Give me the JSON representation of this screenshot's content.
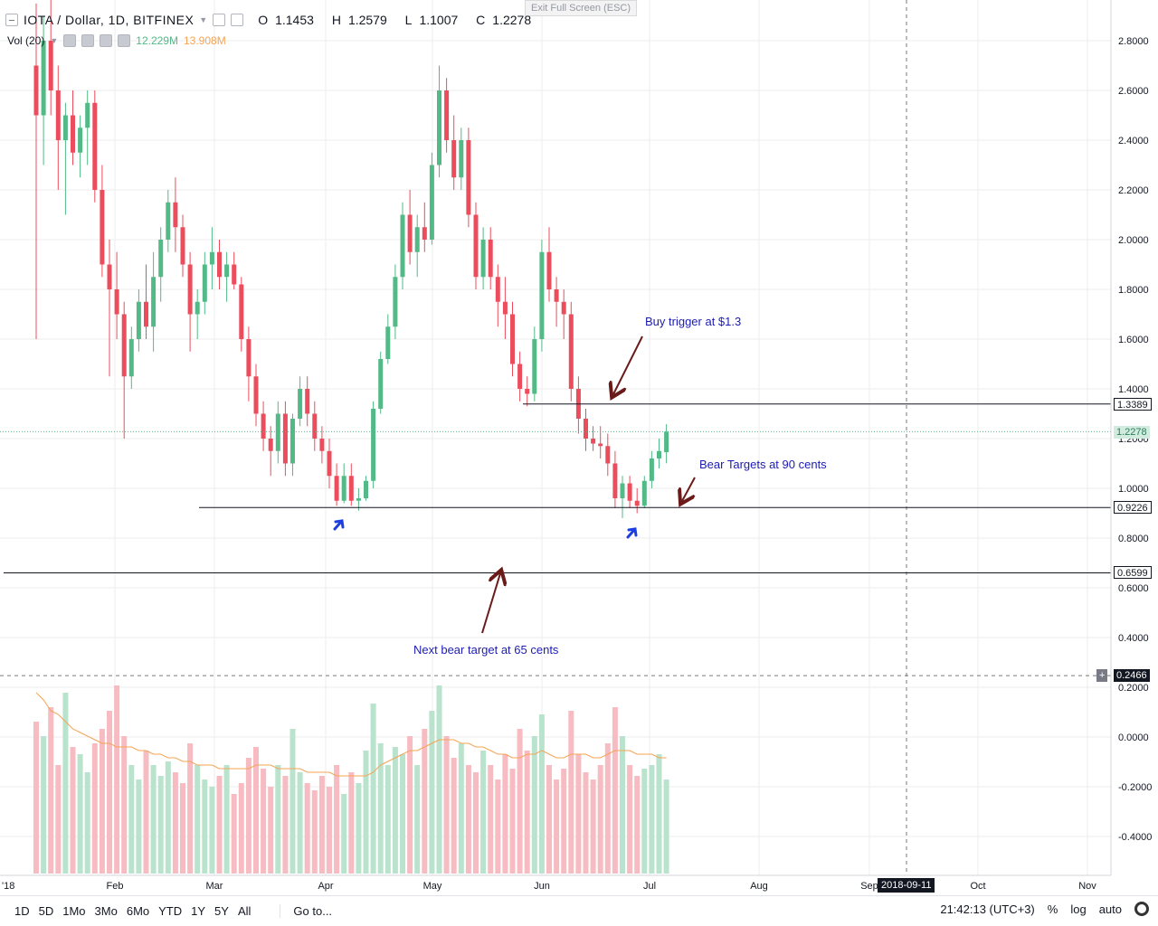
{
  "header": {
    "symbol": "IOTA / Dollar, 1D, BITFINEX",
    "open_label": "O",
    "open": "1.1453",
    "high_label": "H",
    "high": "1.2579",
    "low_label": "L",
    "low": "1.1007",
    "close_label": "C",
    "close": "1.2278",
    "vol_label": "Vol (20)",
    "vol_value": "12.229M",
    "vol_ma_value": "13.908M",
    "exit_fullscreen": "Exit Full Screen (ESC)"
  },
  "colors": {
    "up": "#53b987",
    "down": "#eb4d5c",
    "vol_up": "#b9e3cd",
    "vol_down": "#f7bcc2",
    "vol_ma": "#f5a455",
    "annotation_text": "#1c1cb4",
    "arrow_dark": "#6b1a1a",
    "arrow_blue": "#1d3fe0"
  },
  "annotations": {
    "buy_trigger": "Buy trigger at $1.3",
    "bear_targets": "Bear Targets at 90 cents",
    "next_bear": "Next bear target at 65 cents"
  },
  "price_labels": {
    "line_1339": "1.3389",
    "current": "1.2278",
    "line_0922": "0.9226",
    "line_0659": "0.6599",
    "crosshair": "0.2466"
  },
  "crosshair_date": "2018-09-11",
  "bottom_bar": {
    "timeframes": [
      "1D",
      "5D",
      "1Mo",
      "3Mo",
      "6Mo",
      "YTD",
      "1Y",
      "5Y",
      "All"
    ],
    "goto": "Go to...",
    "clock": "21:42:13 (UTC+3)",
    "percent": "%",
    "log": "log",
    "auto": "auto"
  },
  "chart_data": {
    "type": "candlestick",
    "title": "IOTA / Dollar, 1D, BITFINEX",
    "y_ticks": [
      "2.8000",
      "2.6000",
      "2.4000",
      "2.2000",
      "2.0000",
      "1.8000",
      "1.6000",
      "1.4000",
      "1.2000",
      "1.0000",
      "0.8000",
      "0.6000",
      "0.4000",
      "0.2000",
      "0.0000",
      "-0.2000",
      "-0.4000"
    ],
    "y_tick_values": [
      2.8,
      2.6,
      2.4,
      2.2,
      2.0,
      1.8,
      1.6,
      1.4,
      1.2,
      1.0,
      0.8,
      0.6,
      0.4,
      0.2,
      0.0,
      -0.2,
      -0.4
    ],
    "x_ticks": [
      "Feb",
      "Mar",
      "Apr",
      "May",
      "Jun",
      "Jul",
      "Aug",
      "Sep",
      "Oct",
      "Nov"
    ],
    "x_tick_partial": "'18",
    "horizontal_levels": [
      1.3389,
      0.9226,
      0.6599
    ],
    "last_price": 1.2278,
    "candles": [
      [
        2.7,
        2.95,
        1.6,
        2.5
      ],
      [
        2.5,
        2.9,
        2.3,
        2.8
      ],
      [
        2.8,
        3.0,
        2.5,
        2.6
      ],
      [
        2.6,
        2.7,
        2.2,
        2.4
      ],
      [
        2.4,
        2.55,
        2.1,
        2.5
      ],
      [
        2.5,
        2.6,
        2.3,
        2.35
      ],
      [
        2.35,
        2.5,
        2.25,
        2.45
      ],
      [
        2.45,
        2.6,
        2.3,
        2.55
      ],
      [
        2.55,
        2.6,
        2.15,
        2.2
      ],
      [
        2.2,
        2.3,
        1.85,
        1.9
      ],
      [
        1.9,
        2.0,
        1.45,
        1.8
      ],
      [
        1.8,
        1.95,
        1.6,
        1.7
      ],
      [
        1.7,
        1.75,
        1.2,
        1.45
      ],
      [
        1.45,
        1.65,
        1.4,
        1.6
      ],
      [
        1.6,
        1.8,
        1.55,
        1.75
      ],
      [
        1.75,
        1.9,
        1.6,
        1.65
      ],
      [
        1.65,
        1.95,
        1.55,
        1.85
      ],
      [
        1.85,
        2.05,
        1.75,
        2.0
      ],
      [
        2.0,
        2.2,
        1.95,
        2.15
      ],
      [
        2.15,
        2.25,
        1.95,
        2.05
      ],
      [
        2.05,
        2.1,
        1.85,
        1.9
      ],
      [
        1.9,
        1.95,
        1.55,
        1.7
      ],
      [
        1.7,
        1.8,
        1.6,
        1.75
      ],
      [
        1.75,
        1.95,
        1.7,
        1.9
      ],
      [
        1.9,
        2.05,
        1.8,
        1.95
      ],
      [
        1.95,
        2.0,
        1.8,
        1.85
      ],
      [
        1.85,
        1.95,
        1.75,
        1.9
      ],
      [
        1.9,
        1.95,
        1.8,
        1.82
      ],
      [
        1.82,
        1.85,
        1.55,
        1.6
      ],
      [
        1.6,
        1.65,
        1.35,
        1.45
      ],
      [
        1.45,
        1.5,
        1.25,
        1.3
      ],
      [
        1.3,
        1.35,
        1.15,
        1.2
      ],
      [
        1.2,
        1.25,
        1.05,
        1.15
      ],
      [
        1.15,
        1.35,
        1.1,
        1.3
      ],
      [
        1.3,
        1.35,
        1.05,
        1.1
      ],
      [
        1.1,
        1.3,
        1.05,
        1.28
      ],
      [
        1.28,
        1.45,
        1.25,
        1.4
      ],
      [
        1.4,
        1.45,
        1.25,
        1.3
      ],
      [
        1.3,
        1.35,
        1.15,
        1.2
      ],
      [
        1.2,
        1.25,
        1.1,
        1.15
      ],
      [
        1.15,
        1.2,
        1.0,
        1.05
      ],
      [
        1.05,
        1.1,
        0.93,
        0.95
      ],
      [
        0.95,
        1.1,
        0.94,
        1.05
      ],
      [
        1.05,
        1.1,
        0.93,
        0.95
      ],
      [
        0.95,
        1.0,
        0.91,
        0.96
      ],
      [
        0.96,
        1.05,
        0.95,
        1.03
      ],
      [
        1.03,
        1.35,
        1.0,
        1.32
      ],
      [
        1.32,
        1.55,
        1.3,
        1.52
      ],
      [
        1.52,
        1.7,
        1.5,
        1.65
      ],
      [
        1.65,
        1.9,
        1.6,
        1.85
      ],
      [
        1.85,
        2.15,
        1.8,
        2.1
      ],
      [
        2.1,
        2.2,
        1.9,
        1.95
      ],
      [
        1.95,
        2.1,
        1.85,
        2.05
      ],
      [
        2.05,
        2.15,
        1.95,
        2.0
      ],
      [
        2.0,
        2.35,
        1.98,
        2.3
      ],
      [
        2.3,
        2.7,
        2.25,
        2.6
      ],
      [
        2.6,
        2.65,
        2.35,
        2.4
      ],
      [
        2.4,
        2.5,
        2.2,
        2.25
      ],
      [
        2.25,
        2.45,
        2.2,
        2.4
      ],
      [
        2.4,
        2.45,
        2.05,
        2.1
      ],
      [
        2.1,
        2.15,
        1.8,
        1.85
      ],
      [
        1.85,
        2.05,
        1.8,
        2.0
      ],
      [
        2.0,
        2.05,
        1.8,
        1.85
      ],
      [
        1.85,
        1.9,
        1.65,
        1.75
      ],
      [
        1.75,
        1.85,
        1.6,
        1.7
      ],
      [
        1.7,
        1.75,
        1.45,
        1.5
      ],
      [
        1.5,
        1.55,
        1.35,
        1.4
      ],
      [
        1.4,
        1.45,
        1.33,
        1.38
      ],
      [
        1.38,
        1.65,
        1.35,
        1.6
      ],
      [
        1.6,
        2.0,
        1.55,
        1.95
      ],
      [
        1.95,
        2.05,
        1.75,
        1.8
      ],
      [
        1.8,
        1.85,
        1.65,
        1.75
      ],
      [
        1.75,
        1.8,
        1.6,
        1.7
      ],
      [
        1.7,
        1.75,
        1.35,
        1.4
      ],
      [
        1.4,
        1.45,
        1.22,
        1.28
      ],
      [
        1.28,
        1.32,
        1.15,
        1.2
      ],
      [
        1.2,
        1.25,
        1.15,
        1.18
      ],
      [
        1.18,
        1.25,
        1.12,
        1.17
      ],
      [
        1.17,
        1.22,
        1.05,
        1.1
      ],
      [
        1.1,
        1.15,
        0.92,
        0.96
      ],
      [
        0.96,
        1.05,
        0.88,
        1.02
      ],
      [
        1.02,
        1.05,
        0.92,
        0.95
      ],
      [
        0.95,
        1.0,
        0.9,
        0.93
      ],
      [
        0.93,
        1.05,
        0.92,
        1.03
      ],
      [
        1.03,
        1.15,
        1.0,
        1.12
      ],
      [
        1.12,
        1.2,
        1.08,
        1.15
      ],
      [
        1.1453,
        1.2579,
        1.1007,
        1.2278
      ]
    ],
    "volume": {
      "name": "Vol (20)",
      "values": [
        0.42,
        0.38,
        0.46,
        0.3,
        0.5,
        0.35,
        0.33,
        0.28,
        0.36,
        0.4,
        0.45,
        0.52,
        0.38,
        0.3,
        0.26,
        0.34,
        0.3,
        0.27,
        0.31,
        0.28,
        0.25,
        0.36,
        0.3,
        0.26,
        0.24,
        0.27,
        0.3,
        0.22,
        0.25,
        0.32,
        0.35,
        0.29,
        0.24,
        0.3,
        0.27,
        0.4,
        0.28,
        0.25,
        0.23,
        0.27,
        0.24,
        0.3,
        0.22,
        0.28,
        0.25,
        0.34,
        0.47,
        0.36,
        0.3,
        0.35,
        0.33,
        0.38,
        0.3,
        0.4,
        0.45,
        0.52,
        0.38,
        0.32,
        0.36,
        0.3,
        0.28,
        0.34,
        0.3,
        0.26,
        0.33,
        0.29,
        0.4,
        0.34,
        0.38,
        0.44,
        0.3,
        0.26,
        0.29,
        0.45,
        0.33,
        0.28,
        0.26,
        0.3,
        0.36,
        0.46,
        0.38,
        0.3,
        0.27,
        0.29,
        0.3,
        0.33,
        0.26
      ],
      "ma": [
        0.5,
        0.48,
        0.45,
        0.44,
        0.42,
        0.4,
        0.39,
        0.38,
        0.37,
        0.36,
        0.36,
        0.35,
        0.35,
        0.35,
        0.34,
        0.34,
        0.33,
        0.33,
        0.32,
        0.32,
        0.31,
        0.31,
        0.3,
        0.3,
        0.3,
        0.29,
        0.29,
        0.29,
        0.29,
        0.29,
        0.3,
        0.3,
        0.3,
        0.29,
        0.29,
        0.29,
        0.29,
        0.28,
        0.28,
        0.28,
        0.28,
        0.27,
        0.27,
        0.27,
        0.27,
        0.27,
        0.28,
        0.3,
        0.31,
        0.32,
        0.33,
        0.34,
        0.34,
        0.35,
        0.36,
        0.37,
        0.37,
        0.37,
        0.36,
        0.36,
        0.35,
        0.35,
        0.34,
        0.33,
        0.33,
        0.32,
        0.32,
        0.33,
        0.33,
        0.34,
        0.33,
        0.32,
        0.32,
        0.33,
        0.33,
        0.33,
        0.32,
        0.32,
        0.33,
        0.34,
        0.34,
        0.34,
        0.33,
        0.33,
        0.33,
        0.32,
        0.32
      ]
    }
  }
}
